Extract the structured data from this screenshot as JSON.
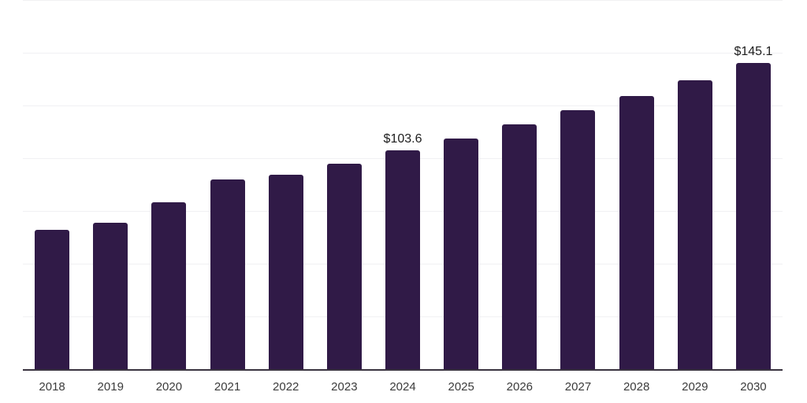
{
  "chart_data": {
    "type": "bar",
    "categories": [
      "2018",
      "2019",
      "2020",
      "2021",
      "2022",
      "2023",
      "2024",
      "2025",
      "2026",
      "2027",
      "2028",
      "2029",
      "2030"
    ],
    "values": [
      66.0,
      69.6,
      79.0,
      89.9,
      92.3,
      97.5,
      103.6,
      109.4,
      115.9,
      122.6,
      129.5,
      136.9,
      145.1
    ],
    "point_labels": [
      "",
      "",
      "",
      "",
      "",
      "",
      "$103.6",
      "",
      "",
      "",
      "",
      "",
      "$145.1"
    ],
    "title": "",
    "xlabel": "",
    "ylabel": "",
    "ylim": [
      0,
      175
    ],
    "gridline_values": [
      25,
      50,
      75,
      100,
      125,
      150,
      175
    ],
    "grid": "horizontal-only",
    "legend": "none",
    "bar_color": "#301a47",
    "axis_line_color": "#39333f",
    "gridline_color": "#f1f1f3",
    "value_label_color": "#1d1d1d",
    "tick_label_color": "#3b3b3b",
    "background_color": "#ffffff"
  }
}
